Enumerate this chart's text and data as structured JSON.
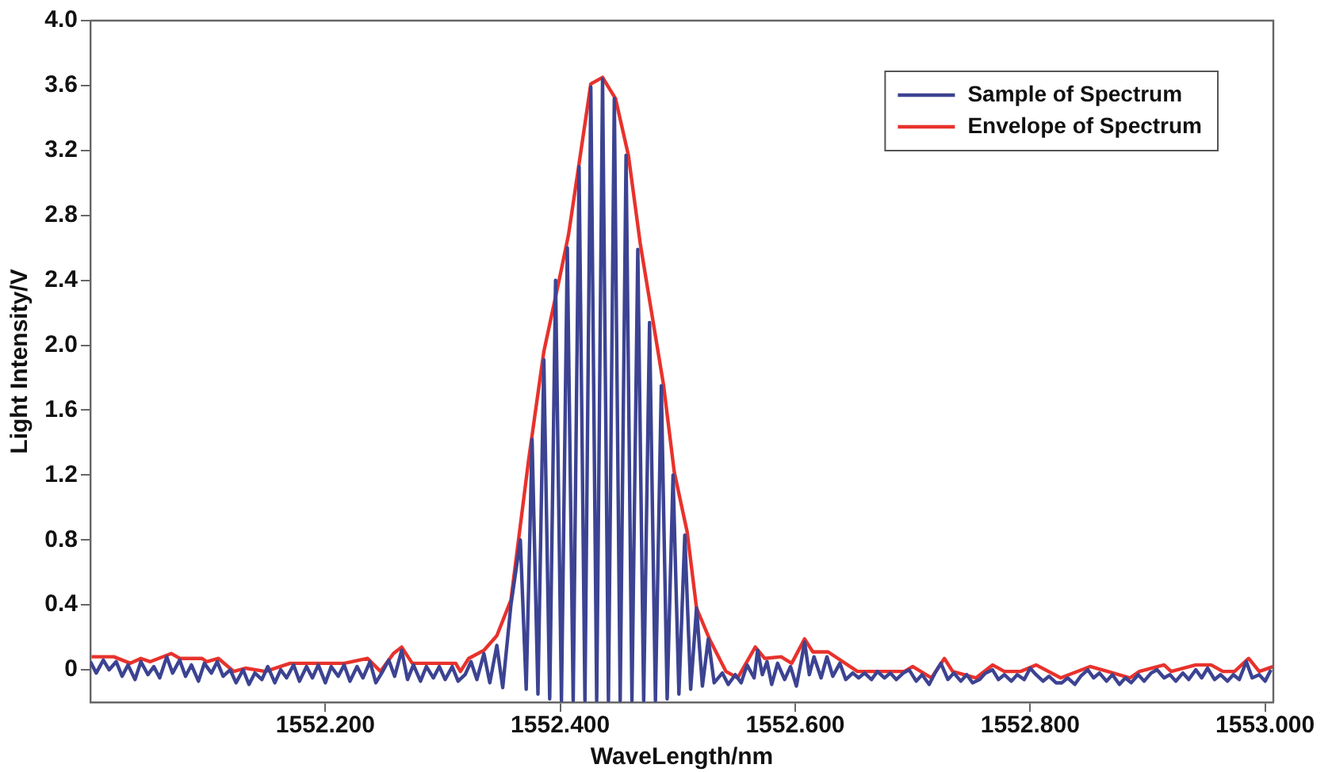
{
  "chart_data": {
    "type": "line",
    "xlabel": "WaveLength/nm",
    "ylabel": "Light Intensity/V",
    "xlim": [
      1552.0,
      1553.007
    ],
    "ylim": [
      -0.2,
      4.0
    ],
    "xticks": [
      {
        "value": 1552.2,
        "label": "1552.200"
      },
      {
        "value": 1552.4,
        "label": "1552.400"
      },
      {
        "value": 1552.6,
        "label": "1552.600"
      },
      {
        "value": 1552.8,
        "label": "1552.800"
      },
      {
        "value": 1553.0,
        "label": "1553.000"
      }
    ],
    "yticks": [
      0,
      0.4,
      0.8,
      1.2,
      1.6,
      {
        "value": 2,
        "label": "2.0"
      },
      2.4,
      2.8,
      3.2,
      3.6,
      {
        "value": 4,
        "label": "4.0"
      }
    ],
    "grid": false,
    "legend": "top right",
    "marker": "none",
    "line_style": "solid",
    "series": [
      {
        "name": "Sample of Spectrum",
        "color": "#3c4392",
        "x": [
          1552.0,
          1552.005,
          1552.011,
          1552.016,
          1552.022,
          1552.027,
          1552.032,
          1552.038,
          1552.043,
          1552.049,
          1552.054,
          1552.059,
          1552.065,
          1552.07,
          1552.076,
          1552.081,
          1552.086,
          1552.092,
          1552.097,
          1552.103,
          1552.108,
          1552.113,
          1552.119,
          1552.124,
          1552.13,
          1552.135,
          1552.14,
          1552.146,
          1552.151,
          1552.157,
          1552.162,
          1552.167,
          1552.173,
          1552.178,
          1552.184,
          1552.189,
          1552.194,
          1552.2,
          1552.205,
          1552.211,
          1552.216,
          1552.221,
          1552.227,
          1552.232,
          1552.238,
          1552.243,
          1552.248,
          1552.254,
          1552.259,
          1552.265,
          1552.27,
          1552.275,
          1552.281,
          1552.286,
          1552.292,
          1552.297,
          1552.302,
          1552.308,
          1552.313,
          1552.319,
          1552.324,
          1552.329,
          1552.335,
          1552.34,
          1552.346,
          1552.351,
          1552.358,
          1552.366,
          1552.371,
          1552.376,
          1552.381,
          1552.386,
          1552.391,
          1552.396,
          1552.401,
          1552.406,
          1552.411,
          1552.416,
          1552.421,
          1552.426,
          1552.431,
          1552.436,
          1552.441,
          1552.446,
          1552.451,
          1552.456,
          1552.461,
          1552.466,
          1552.471,
          1552.476,
          1552.481,
          1552.486,
          1552.491,
          1552.496,
          1552.501,
          1552.506,
          1552.511,
          1552.516,
          1552.521,
          1552.526,
          1552.531,
          1552.538,
          1552.543,
          1552.549,
          1552.554,
          1552.559,
          1552.565,
          1552.568,
          1552.572,
          1552.576,
          1552.58,
          1552.585,
          1552.591,
          1552.596,
          1552.601,
          1552.605,
          1552.608,
          1552.612,
          1552.616,
          1552.622,
          1552.627,
          1552.632,
          1552.638,
          1552.643,
          1552.649,
          1552.654,
          1552.659,
          1552.665,
          1552.67,
          1552.676,
          1552.681,
          1552.686,
          1552.692,
          1552.697,
          1552.703,
          1552.708,
          1552.714,
          1552.719,
          1552.724,
          1552.73,
          1552.735,
          1552.741,
          1552.746,
          1552.751,
          1552.757,
          1552.762,
          1552.768,
          1552.773,
          1552.778,
          1552.784,
          1552.789,
          1552.795,
          1552.8,
          1552.805,
          1552.811,
          1552.816,
          1552.822,
          1552.827,
          1552.832,
          1552.838,
          1552.843,
          1552.849,
          1552.854,
          1552.859,
          1552.865,
          1552.87,
          1552.876,
          1552.881,
          1552.886,
          1552.892,
          1552.897,
          1552.903,
          1552.908,
          1552.914,
          1552.919,
          1552.924,
          1552.93,
          1552.935,
          1552.941,
          1552.946,
          1552.951,
          1552.957,
          1552.962,
          1552.968,
          1552.973,
          1552.978,
          1552.984,
          1552.989,
          1552.995,
          1553.0,
          1553.005
        ],
        "values": [
          0.05,
          -0.02,
          0.06,
          0.0,
          0.05,
          -0.04,
          0.03,
          -0.06,
          0.05,
          -0.03,
          0.02,
          -0.05,
          0.08,
          -0.02,
          0.06,
          -0.04,
          0.03,
          -0.07,
          0.04,
          -0.02,
          0.05,
          -0.04,
          0.0,
          -0.08,
          0.0,
          -0.09,
          -0.02,
          -0.06,
          0.02,
          -0.08,
          0.0,
          -0.05,
          0.03,
          -0.07,
          0.02,
          -0.05,
          0.03,
          -0.08,
          0.02,
          -0.04,
          0.03,
          -0.07,
          0.02,
          -0.05,
          0.05,
          -0.08,
          -0.02,
          0.06,
          -0.04,
          0.12,
          -0.06,
          0.03,
          -0.07,
          0.02,
          -0.05,
          0.02,
          -0.06,
          0.02,
          -0.07,
          -0.03,
          0.05,
          -0.06,
          0.1,
          -0.08,
          0.15,
          -0.11,
          0.4,
          0.8,
          -0.12,
          1.42,
          -0.15,
          1.91,
          -0.18,
          2.4,
          -0.19,
          2.6,
          -0.19,
          3.1,
          -0.19,
          3.59,
          -0.19,
          3.64,
          -0.19,
          3.52,
          -0.19,
          3.17,
          -0.19,
          2.59,
          -0.19,
          2.14,
          -0.19,
          1.75,
          -0.18,
          1.2,
          -0.15,
          0.83,
          -0.12,
          0.38,
          -0.1,
          0.19,
          -0.08,
          -0.02,
          -0.09,
          -0.03,
          -0.08,
          0.03,
          -0.05,
          0.12,
          -0.03,
          0.05,
          -0.09,
          0.04,
          -0.06,
          0.02,
          -0.1,
          0.05,
          0.17,
          -0.03,
          0.08,
          -0.05,
          0.08,
          -0.04,
          0.04,
          -0.06,
          -0.02,
          -0.05,
          -0.02,
          -0.06,
          -0.01,
          -0.05,
          -0.02,
          -0.06,
          -0.02,
          0.0,
          -0.07,
          -0.03,
          -0.09,
          -0.02,
          0.04,
          -0.06,
          -0.02,
          -0.07,
          -0.03,
          -0.08,
          -0.06,
          -0.02,
          0.0,
          -0.06,
          -0.03,
          -0.07,
          -0.03,
          -0.06,
          0.01,
          -0.03,
          -0.07,
          -0.04,
          -0.08,
          -0.08,
          -0.05,
          -0.09,
          -0.04,
          0.0,
          -0.05,
          -0.02,
          -0.07,
          -0.03,
          -0.09,
          -0.05,
          -0.08,
          -0.03,
          -0.07,
          -0.02,
          0.0,
          -0.05,
          -0.03,
          -0.07,
          -0.02,
          -0.06,
          0.0,
          -0.05,
          0.01,
          -0.06,
          -0.03,
          -0.07,
          -0.03,
          -0.06,
          0.05,
          -0.05,
          -0.03,
          -0.07,
          0.0
        ]
      },
      {
        "name": "Envelope of Spectrum",
        "color": "#e8322c",
        "x": [
          1552.001,
          1552.02,
          1552.034,
          1552.043,
          1552.051,
          1552.069,
          1552.076,
          1552.095,
          1552.099,
          1552.109,
          1552.122,
          1552.132,
          1552.149,
          1552.17,
          1552.216,
          1552.236,
          1552.247,
          1552.258,
          1552.265,
          1552.274,
          1552.311,
          1552.315,
          1552.322,
          1552.335,
          1552.346,
          1552.358,
          1552.373,
          1552.386,
          1552.399,
          1552.407,
          1552.414,
          1552.426,
          1552.436,
          1552.447,
          1552.458,
          1552.468,
          1552.488,
          1552.497,
          1552.508,
          1552.516,
          1552.527,
          1552.541,
          1552.551,
          1552.566,
          1552.574,
          1552.588,
          1552.597,
          1552.608,
          1552.615,
          1552.628,
          1552.653,
          1552.693,
          1552.7,
          1552.716,
          1552.727,
          1552.734,
          1552.754,
          1552.768,
          1552.778,
          1552.792,
          1552.805,
          1552.826,
          1552.851,
          1552.866,
          1552.885,
          1552.893,
          1552.914,
          1552.92,
          1552.941,
          1552.954,
          1552.964,
          1552.974,
          1552.986,
          1552.995,
          1553.007
        ],
        "values": [
          0.08,
          0.08,
          0.04,
          0.07,
          0.05,
          0.1,
          0.07,
          0.07,
          0.05,
          0.07,
          -0.01,
          0.01,
          -0.01,
          0.04,
          0.04,
          0.07,
          -0.01,
          0.1,
          0.14,
          0.04,
          0.04,
          -0.01,
          0.07,
          0.12,
          0.21,
          0.43,
          1.29,
          1.96,
          2.4,
          2.68,
          3.02,
          3.61,
          3.65,
          3.52,
          3.17,
          2.63,
          1.75,
          1.22,
          0.85,
          0.38,
          0.19,
          -0.01,
          -0.05,
          0.14,
          0.07,
          0.08,
          0.04,
          0.19,
          0.11,
          0.11,
          -0.01,
          -0.01,
          0.02,
          -0.05,
          0.07,
          -0.01,
          -0.05,
          0.03,
          -0.01,
          -0.01,
          0.03,
          -0.05,
          0.02,
          -0.01,
          -0.05,
          -0.01,
          0.03,
          -0.01,
          0.03,
          0.03,
          -0.01,
          -0.01,
          0.07,
          -0.01,
          0.02
        ]
      }
    ]
  }
}
